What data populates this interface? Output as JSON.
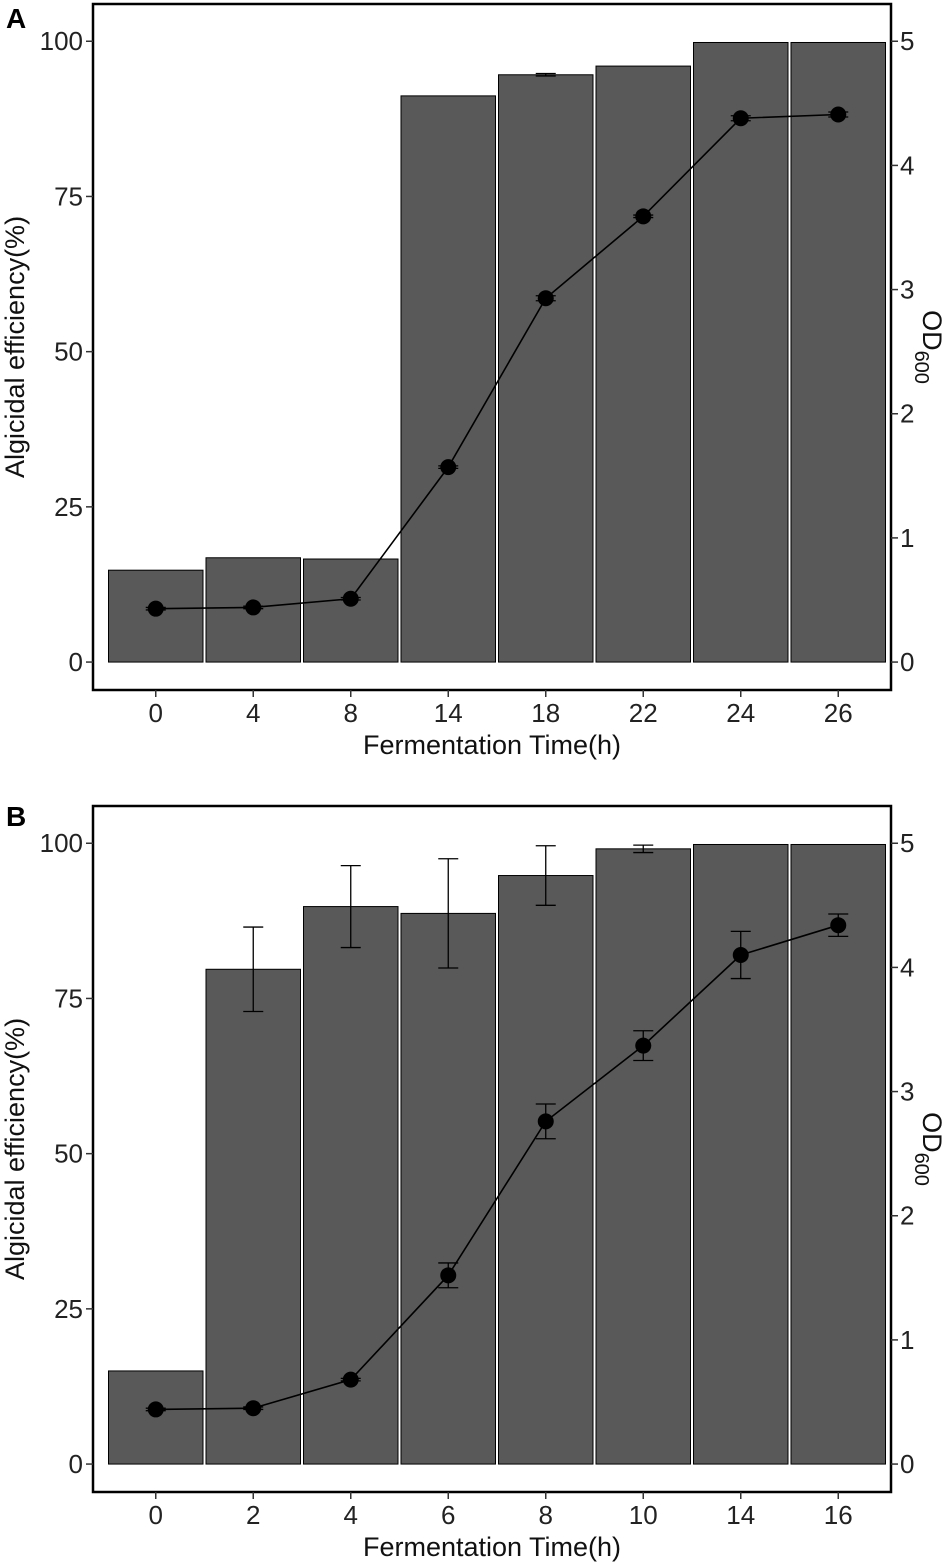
{
  "chart_data": [
    {
      "type": "bar",
      "panel_label": "A",
      "xlabel": "Fermentation Time(h)",
      "ylabel": "Algicidal efficiency(%)",
      "y2label": "OD",
      "y2label_subscript": "600",
      "categories": [
        "0",
        "4",
        "8",
        "14",
        "18",
        "22",
        "24",
        "26"
      ],
      "ylim": [
        -4.5,
        106
      ],
      "yticks": [
        0,
        25,
        50,
        75,
        100
      ],
      "y2lim": [
        -0.225,
        5.3
      ],
      "y2ticks": [
        0,
        1,
        2,
        3,
        4,
        5
      ],
      "series": [
        {
          "name": "Algicidal efficiency",
          "type": "bar",
          "axis": "left",
          "values": [
            14.8,
            16.8,
            16.6,
            91.2,
            94.6,
            96.0,
            99.8,
            99.8
          ],
          "errors": [
            0,
            0,
            0,
            0,
            0.2,
            0,
            0,
            0
          ]
        },
        {
          "name": "OD600",
          "type": "line",
          "axis": "right",
          "values": [
            0.43,
            0.44,
            0.51,
            1.57,
            2.93,
            3.59,
            4.38,
            4.41
          ],
          "errors": [
            0.01,
            0.01,
            0.01,
            0.01,
            0.02,
            0.01,
            0.02,
            0.02
          ]
        }
      ]
    },
    {
      "type": "bar",
      "panel_label": "B",
      "xlabel": "Fermentation Time(h)",
      "ylabel": "Algicidal efficiency(%)",
      "y2label": "OD",
      "y2label_subscript": "600",
      "categories": [
        "0",
        "2",
        "4",
        "6",
        "8",
        "10",
        "14",
        "16"
      ],
      "ylim": [
        -4.5,
        106
      ],
      "yticks": [
        0,
        25,
        50,
        75,
        100
      ],
      "y2lim": [
        -0.225,
        5.3
      ],
      "y2ticks": [
        0,
        1,
        2,
        3,
        4,
        5
      ],
      "series": [
        {
          "name": "Algicidal efficiency",
          "type": "bar",
          "axis": "left",
          "values": [
            15.0,
            79.7,
            89.8,
            88.7,
            94.8,
            99.1,
            99.8,
            99.8
          ],
          "errors": [
            0,
            6.8,
            6.6,
            8.8,
            4.8,
            0.6,
            0,
            0
          ]
        },
        {
          "name": "OD600",
          "type": "line",
          "axis": "right",
          "values": [
            0.44,
            0.45,
            0.68,
            1.52,
            2.76,
            3.37,
            4.1,
            4.34
          ],
          "errors": [
            0.01,
            0.01,
            0.01,
            0.1,
            0.14,
            0.12,
            0.19,
            0.09
          ]
        }
      ]
    }
  ]
}
